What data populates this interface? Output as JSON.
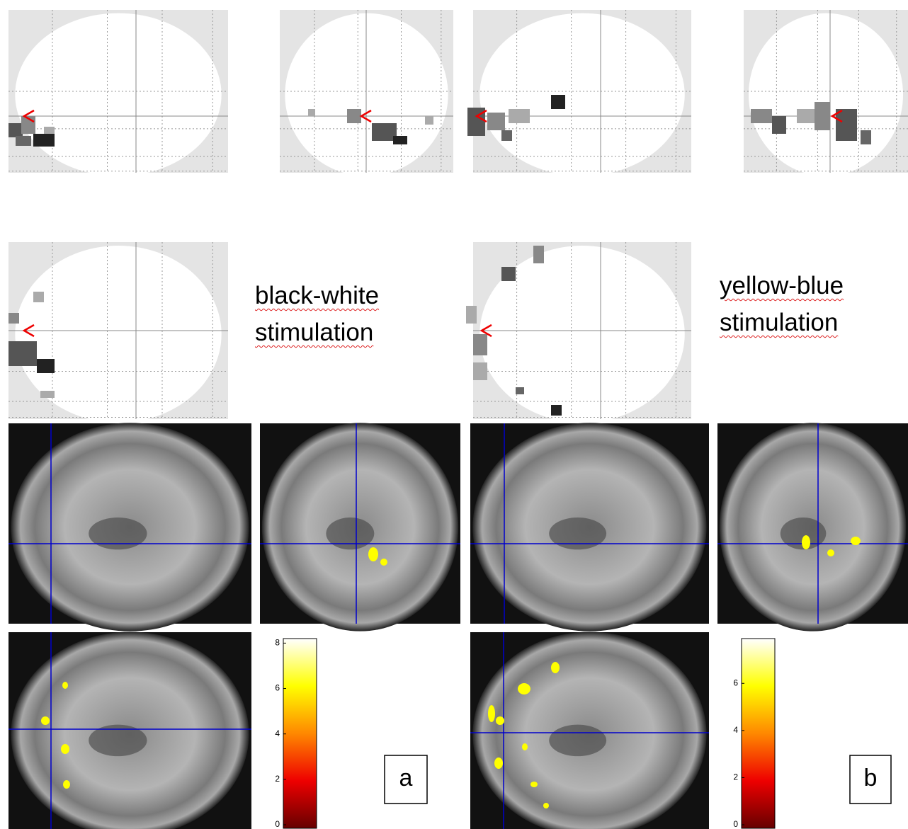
{
  "panel_a": {
    "label_lines": [
      "black-white",
      "stimulation"
    ],
    "letter": "a",
    "colorbar": {
      "ticks": [
        0,
        2,
        4,
        6,
        8
      ],
      "lim": [
        0,
        8.2
      ]
    }
  },
  "panel_b": {
    "label_lines": [
      "yellow-blue",
      "stimulation"
    ],
    "letter": "b",
    "colorbar": {
      "ticks": [
        0,
        2,
        4,
        6
      ],
      "lim": [
        0,
        7.9
      ]
    }
  }
}
